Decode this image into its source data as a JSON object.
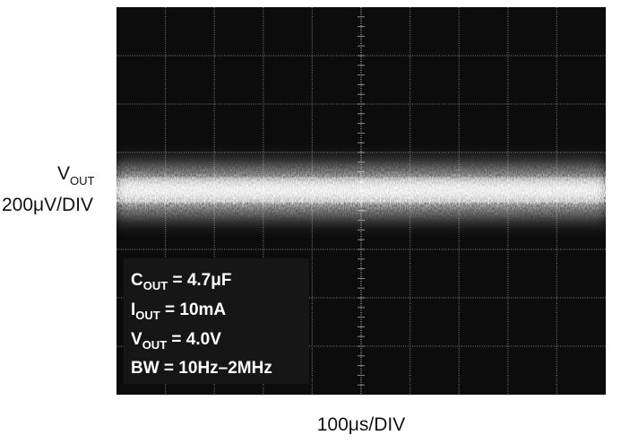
{
  "y_label": {
    "symbol": "V",
    "subscript": "OUT",
    "scale": "200μV/DIV"
  },
  "x_label": "100μs/DIV",
  "conditions": [
    {
      "symbol": "C",
      "subscript": "OUT",
      "value": " = 4.7μF"
    },
    {
      "symbol": "I",
      "subscript": "OUT",
      "value": " = 10mA"
    },
    {
      "symbol": "V",
      "subscript": "OUT",
      "value": " = 4.0V"
    },
    {
      "text": "BW = 10Hz–2MHz"
    }
  ]
}
